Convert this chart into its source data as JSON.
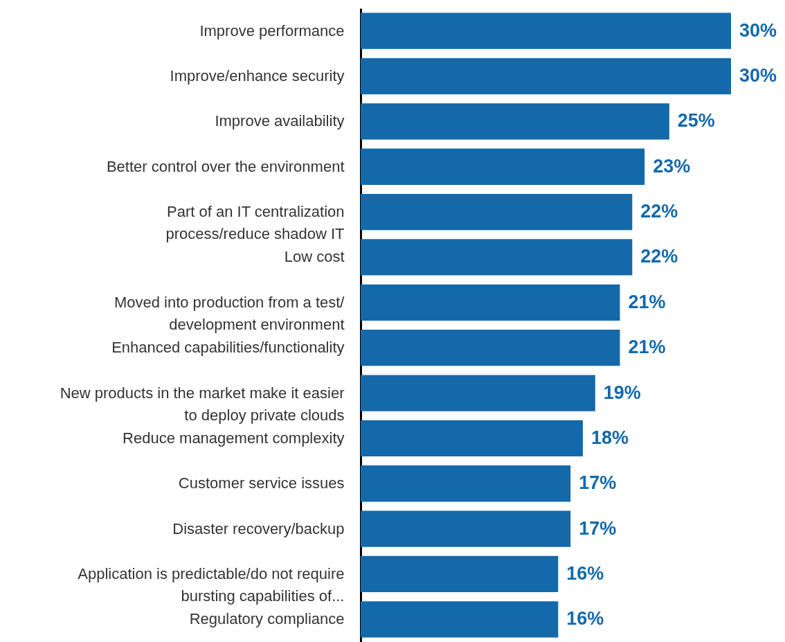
{
  "chart_data": {
    "type": "bar",
    "orientation": "horizontal",
    "categories": [
      "Improve performance",
      "Improve/enhance security",
      "Improve availability",
      "Better control over the environment",
      "Part of an IT centralization\nprocess/reduce shadow IT",
      "Low cost",
      "Moved into production from a test/\ndevelopment environment",
      "Enhanced capabilities/functionality",
      "New products in the market make it easier\nto deploy private clouds",
      "Reduce management complexity",
      "Customer service issues",
      "Disaster recovery/backup",
      "Application is predictable/do not require\nbursting capabilities of...",
      "Regulatory compliance"
    ],
    "values": [
      30,
      30,
      25,
      23,
      22,
      22,
      21,
      21,
      19,
      18,
      17,
      17,
      16,
      16
    ],
    "value_labels": [
      "30%",
      "30%",
      "25%",
      "23%",
      "22%",
      "22%",
      "21%",
      "21%",
      "19%",
      "18%",
      "17%",
      "17%",
      "16%",
      "16%"
    ],
    "color": "#1469aa"
  }
}
